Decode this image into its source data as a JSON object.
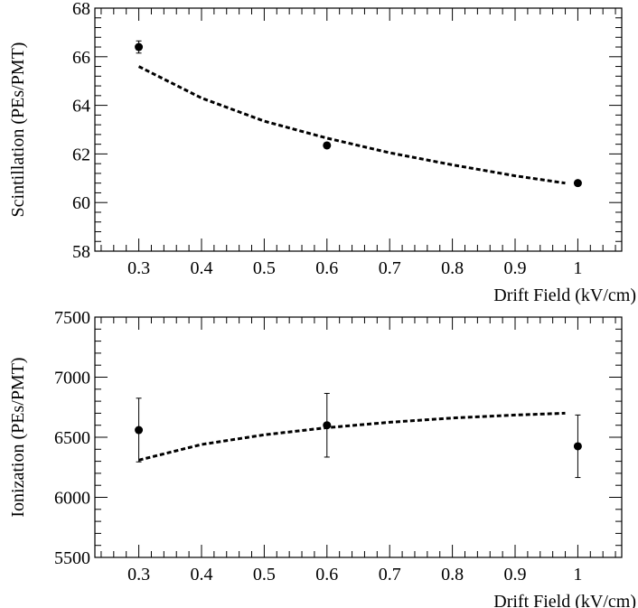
{
  "chart_data": [
    {
      "type": "scatter",
      "title": "",
      "xlabel": "Drift Field (kV/cm)",
      "ylabel": "Scintillation (PEs/PMT)",
      "xlim": [
        0.23,
        1.07
      ],
      "ylim": [
        58,
        68
      ],
      "xticks": [
        "0.3",
        "0.4",
        "0.5",
        "0.6",
        "0.7",
        "0.8",
        "0.9",
        "1"
      ],
      "yticks": [
        "58",
        "60",
        "62",
        "64",
        "66",
        "68"
      ],
      "grid": false,
      "legend": "none",
      "series": [
        {
          "style": "points-with-error-bars",
          "x": [
            0.3,
            0.6,
            1.0
          ],
          "y": [
            66.4,
            62.35,
            60.8
          ],
          "yerr": [
            0.25,
            0.1,
            0.1
          ]
        },
        {
          "style": "dashed-fit-curve",
          "x": [
            0.3,
            0.4,
            0.5,
            0.6,
            0.7,
            0.8,
            0.9,
            0.98
          ],
          "y": [
            65.6,
            64.3,
            63.35,
            62.65,
            62.05,
            61.55,
            61.1,
            60.8
          ]
        }
      ]
    },
    {
      "type": "scatter",
      "title": "",
      "xlabel": "Drift Field (kV/cm)",
      "ylabel": "Ionization (PEs/PMT)",
      "xlim": [
        0.23,
        1.07
      ],
      "ylim": [
        5500,
        7500
      ],
      "xticks": [
        "0.3",
        "0.4",
        "0.5",
        "0.6",
        "0.7",
        "0.8",
        "0.9",
        "1"
      ],
      "yticks": [
        "5500",
        "6000",
        "6500",
        "7000",
        "7500"
      ],
      "grid": false,
      "legend": "none",
      "series": [
        {
          "style": "points-with-error-bars",
          "x": [
            0.3,
            0.6,
            1.0
          ],
          "y": [
            6560,
            6600,
            6425
          ],
          "yerr": [
            265,
            265,
            260
          ]
        },
        {
          "style": "dashed-fit-curve",
          "x": [
            0.3,
            0.4,
            0.5,
            0.6,
            0.7,
            0.8,
            0.9,
            0.98
          ],
          "y": [
            6310,
            6440,
            6520,
            6580,
            6625,
            6660,
            6685,
            6700
          ]
        }
      ]
    }
  ]
}
